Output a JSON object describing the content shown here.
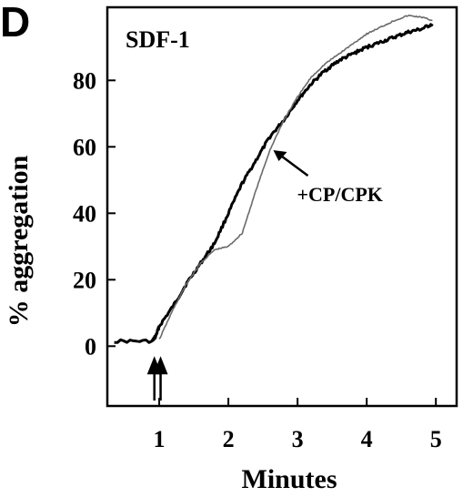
{
  "panel_label": "D",
  "chart_data": {
    "type": "line",
    "title": "SDF-1",
    "xlabel": "Minutes",
    "ylabel": "% aggregation",
    "xlim": [
      0.25,
      5.3
    ],
    "ylim": [
      -18,
      102
    ],
    "xticks": [
      1,
      2,
      3,
      4,
      5
    ],
    "yticks": [
      0,
      20,
      40,
      60,
      80
    ],
    "grid": false,
    "series": [
      {
        "style": "dark",
        "x": [
          0.35,
          0.9,
          0.95,
          1.0,
          1.2,
          1.4,
          1.6,
          1.8,
          2.0,
          2.2,
          2.4,
          2.6,
          2.8,
          3.0,
          3.2,
          3.4,
          3.6,
          3.8,
          4.0,
          4.2,
          4.4,
          4.6,
          4.8,
          4.95
        ],
        "y": [
          1.5,
          1.5,
          3,
          6,
          12,
          19,
          25,
          31,
          40,
          49,
          56,
          63,
          68,
          74,
          79,
          83,
          86,
          88,
          90,
          91.5,
          93,
          94.5,
          95.5,
          97
        ]
      },
      {
        "style": "light",
        "x": [
          1.0,
          1.2,
          1.4,
          1.6,
          1.8,
          2.0,
          2.2,
          2.4,
          2.6,
          2.8,
          3.0,
          3.2,
          3.4,
          3.6,
          3.8,
          4.0,
          4.2,
          4.4,
          4.6,
          4.8,
          4.95
        ],
        "y": [
          2,
          11,
          19,
          25,
          29,
          30,
          34,
          47,
          59,
          68,
          75,
          81,
          85,
          88,
          91,
          94,
          96,
          98,
          99.5,
          99,
          98
        ]
      }
    ],
    "annotations": [
      {
        "text": "+CP/CPK",
        "arrow_to": [
          2.65,
          59
        ]
      }
    ],
    "event_arrows": [
      0.93,
      1.02
    ]
  }
}
